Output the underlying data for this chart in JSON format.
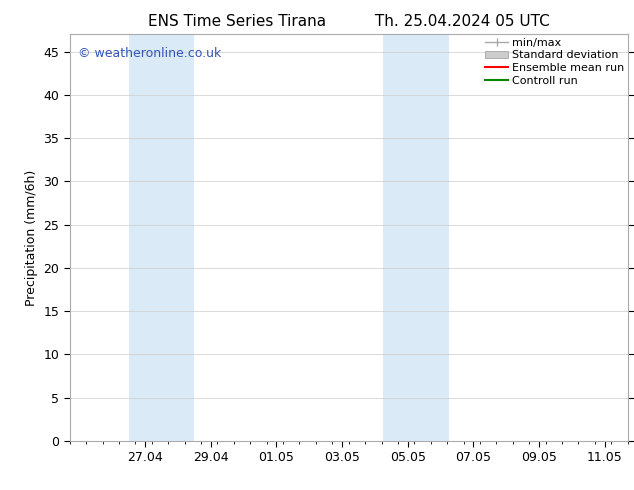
{
  "title_left": "ENS Time Series Tirana",
  "title_right": "Th. 25.04.2024 05 UTC",
  "ylabel": "Precipitation (mm/6h)",
  "ylim": [
    0,
    47
  ],
  "yticks": [
    0,
    5,
    10,
    15,
    20,
    25,
    30,
    35,
    40,
    45
  ],
  "xtick_labels": [
    "27.04",
    "29.04",
    "01.05",
    "03.05",
    "05.05",
    "07.05",
    "09.05",
    "11.05"
  ],
  "xtick_positions": [
    2,
    4,
    6,
    8,
    10,
    12,
    14,
    16
  ],
  "xlim_left": -0.3,
  "xlim_right": 16.7,
  "shaded_bands": [
    {
      "x_start": 1.5,
      "x_end": 3.5
    },
    {
      "x_start": 9.25,
      "x_end": 11.25
    }
  ],
  "shaded_color": "#daeaf7",
  "background_color": "#ffffff",
  "watermark_text": "© weatheronline.co.uk",
  "watermark_color": "#3355bb",
  "title_fontsize": 11,
  "axis_label_fontsize": 9,
  "tick_fontsize": 9,
  "legend_fontsize": 8,
  "minmax_color": "#aaaaaa",
  "std_color": "#cccccc",
  "ensemble_color": "#ff0000",
  "control_color": "#008800"
}
